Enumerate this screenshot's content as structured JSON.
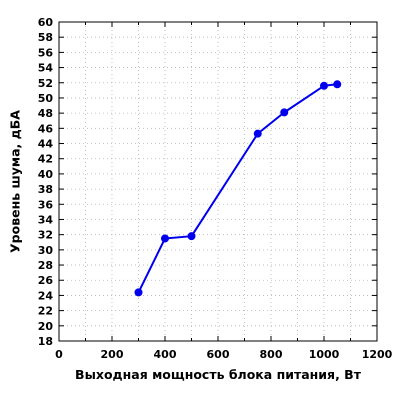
{
  "chart_data": {
    "type": "line",
    "title": "",
    "xlabel": "Выходная мощность блока питания, Вт",
    "ylabel": "Уровень шума, дБА",
    "xlim": [
      0,
      1200
    ],
    "ylim": [
      18,
      60
    ],
    "xticks": [
      0,
      200,
      400,
      600,
      800,
      1000,
      1200
    ],
    "yticks": [
      18,
      20,
      22,
      24,
      26,
      28,
      30,
      32,
      34,
      36,
      38,
      40,
      42,
      44,
      46,
      48,
      50,
      52,
      54,
      56,
      58,
      60
    ],
    "x_minor_step": 100,
    "grid": true,
    "legend": "none",
    "series": [
      {
        "x": [
          300,
          400,
          500,
          750,
          850,
          1000,
          1050
        ],
        "values": [
          24.4,
          31.5,
          31.8,
          45.3,
          48.1,
          51.6,
          51.8
        ],
        "color": "#0000ee"
      }
    ]
  }
}
